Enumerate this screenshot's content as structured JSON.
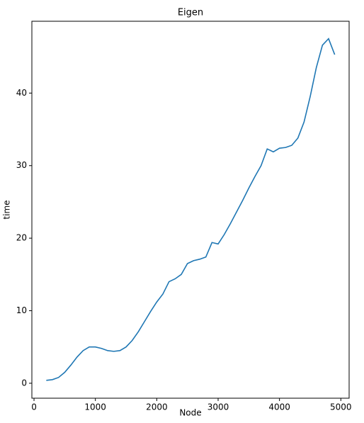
{
  "chart_data": {
    "type": "line",
    "title": "Eigen",
    "x_label": "Node",
    "y_label": "time",
    "x": [
      200,
      300,
      400,
      500,
      600,
      700,
      800,
      900,
      1000,
      1100,
      1200,
      1300,
      1400,
      1500,
      1600,
      1700,
      1800,
      1900,
      2000,
      2100,
      2200,
      2300,
      2400,
      2500,
      2600,
      2700,
      2800,
      2900,
      3000,
      3100,
      3200,
      3300,
      3400,
      3500,
      3600,
      3700,
      3800,
      3900,
      4000,
      4100,
      4200,
      4300,
      4400,
      4500,
      4600,
      4700,
      4800,
      4900
    ],
    "series": [
      {
        "color": "#1f77b4",
        "values": [
          0.4,
          0.5,
          0.8,
          1.5,
          2.5,
          3.6,
          4.5,
          5.0,
          5.0,
          4.8,
          4.5,
          4.4,
          4.5,
          5.0,
          5.9,
          7.1,
          8.5,
          9.9,
          11.2,
          12.3,
          14.0,
          14.4,
          15.0,
          16.5,
          16.9,
          17.1,
          17.4,
          19.4,
          19.2,
          20.5,
          22.0,
          23.6,
          25.2,
          26.9,
          28.5,
          30.0,
          32.3,
          31.9,
          32.4,
          32.5,
          32.8,
          33.8,
          36.0,
          39.5,
          43.5,
          46.6,
          47.5,
          45.3
        ]
      }
    ],
    "xlim": [
      -35,
      5135
    ],
    "ylim": [
      -2.06,
      49.9
    ],
    "xticks": [
      0,
      1000,
      2000,
      3000,
      4000,
      5000
    ],
    "yticks": [
      0,
      10,
      20,
      30,
      40
    ]
  }
}
